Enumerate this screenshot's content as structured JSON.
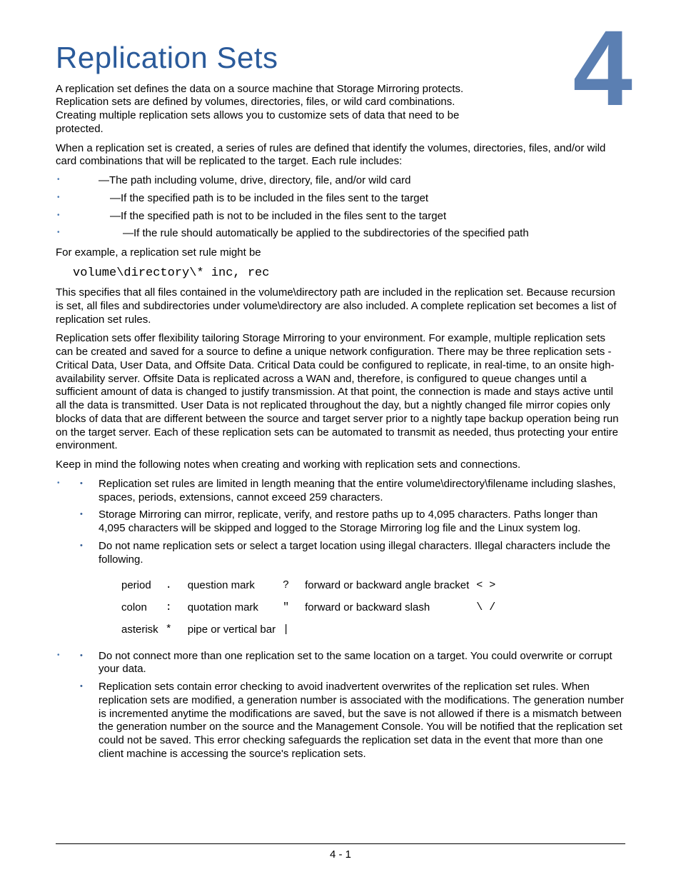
{
  "colors": {
    "title": "#2a5a9a",
    "chapter_num": "#5b7fb2",
    "bullet": "#4a79b1",
    "inner_bullet": "#355e95",
    "text": "#000000",
    "background": "#ffffff"
  },
  "typography": {
    "title_fontsize": 42,
    "chapter_num_fontsize": 150,
    "body_fontsize": 15,
    "code_fontsize": 17
  },
  "header": {
    "title": "Replication Sets",
    "chapter_number": "4"
  },
  "intro": "A replication set defines the data on a source machine that Storage Mirroring protects. Replication sets are defined by volumes, directories, files, or wild card combinations. Creating multiple replication sets allows you to customize sets of data that need to be protected.",
  "rules_intro": "When a replication set is created, a series of rules are defined that identify the volumes, directories, files, and/or wild card combinations that will be replicated to the target. Each rule includes:",
  "rule_items": [
    "—The path including volume, drive, directory, file, and/or wild card",
    "—If the specified path is to be included in the files sent to the target",
    "—If the specified path is not to be included in the files sent to the target",
    "—If the rule should automatically be applied to the subdirectories of the specified path"
  ],
  "rule_indents": [
    0,
    16,
    16,
    34
  ],
  "example_lead": "For example, a replication set rule might be",
  "example_code": "volume\\directory\\* inc, rec",
  "example_explain": "This specifies that all files contained in the volume\\directory path are included in the replication set. Because recursion is set, all files and subdirectories under volume\\directory are also included. A complete replication set becomes a list of replication set rules.",
  "flexibility": "Replication sets offer flexibility tailoring Storage Mirroring to your environment. For example, multiple replication sets can be created and saved for a source to define a unique network configuration. There may be three replication sets - Critical Data, User Data, and Offsite Data. Critical Data could be configured to replicate, in real-time, to an onsite high-availability server. Offsite Data is replicated across a WAN and, therefore, is configured to queue changes until a sufficient amount of data is changed to justify transmission. At that point, the connection is made and stays active until all the data is transmitted. User Data is not replicated throughout the day, but a nightly changed file mirror copies only blocks of data that are different between the source and target server prior to a nightly tape backup operation being run on the target server. Each of these replication sets can be automated to transmit as needed, thus protecting your entire environment.",
  "notes_lead": "Keep in mind the following notes when creating and working with replication sets and connections.",
  "notes_group1": [
    "Replication set rules are limited in length meaning that the entire volume\\directory\\filename including slashes, spaces, periods, extensions, cannot exceed 259 characters.",
    "Storage Mirroring can mirror, replicate, verify, and restore paths up to 4,095 characters. Paths longer than 4,095 characters will be skipped and logged to the Storage Mirroring log file and the Linux system log.",
    "Do not name replication sets or select a target location using illegal characters. Illegal characters include the following."
  ],
  "illegal_chars": {
    "rows": [
      [
        "period",
        ".",
        "question mark",
        "?",
        "forward or backward angle bracket",
        "<  >"
      ],
      [
        "colon",
        ":",
        "quotation mark",
        "\"",
        "forward or backward slash",
        "\\  /"
      ],
      [
        "asterisk",
        "*",
        "pipe or vertical bar",
        "|",
        "",
        ""
      ]
    ]
  },
  "notes_group2": [
    "Do not connect more than one replication set to the same location on a target. You could overwrite or corrupt your data.",
    "Replication sets contain error checking to avoid inadvertent overwrites of the replication set rules. When replication sets are modified, a generation number is associated with the modifications. The generation number is incremented anytime the modifications are saved, but the save is not allowed if there is a mismatch between the generation number on the source and the Management Console. You will be notified that the replication set could not be saved. This error checking safeguards the replication set data in the event that more than one client machine is accessing the source's replication sets."
  ],
  "footer": "4 - 1"
}
